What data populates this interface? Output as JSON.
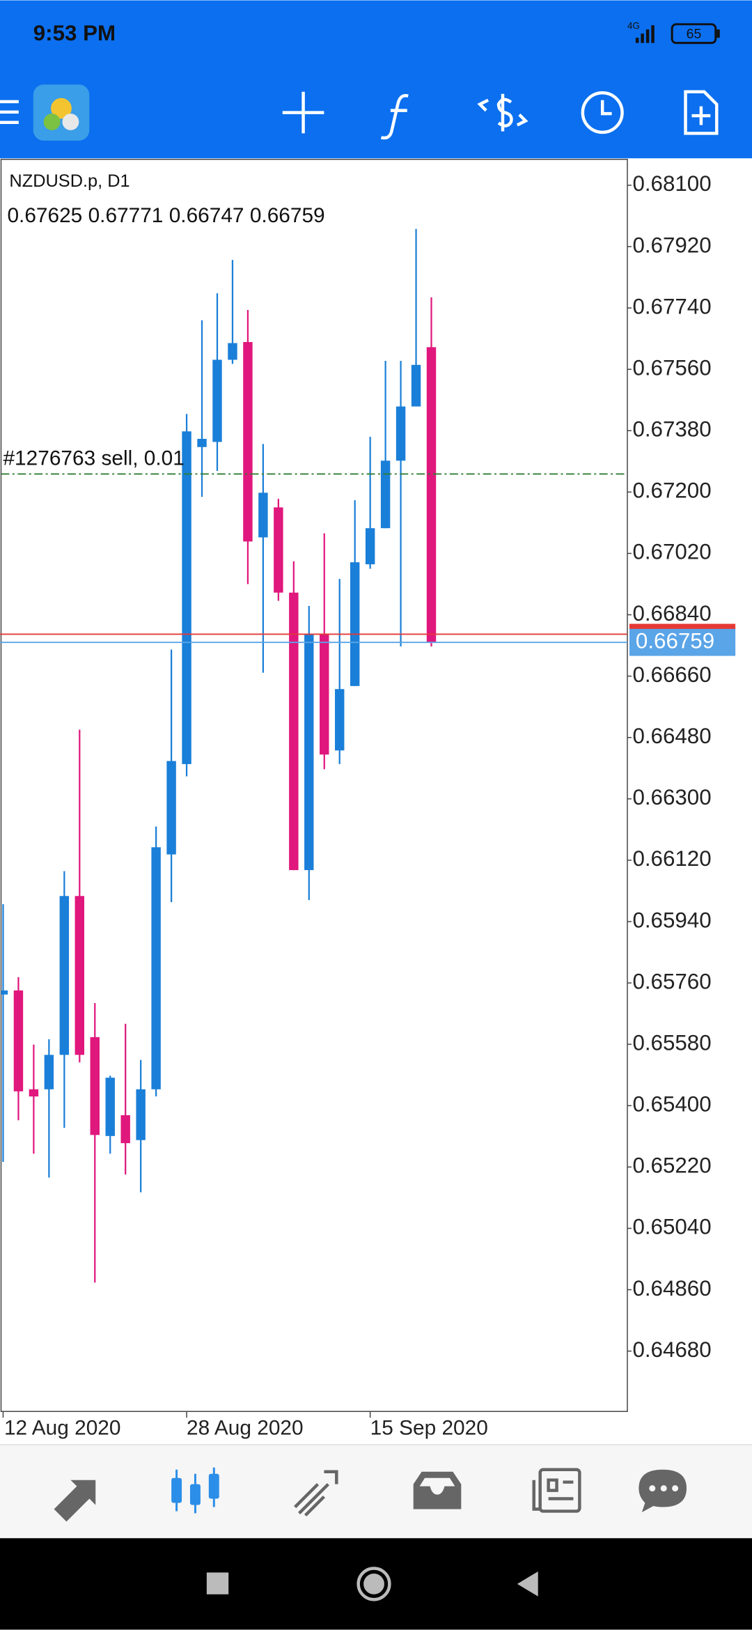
{
  "status_bar": {
    "time": "9:53 PM",
    "network": "4G",
    "battery": 65
  },
  "chart": {
    "type": "candlestick",
    "symbol": "NZDUSD.p, D1",
    "categories": [
      "12 Aug 2020",
      null,
      null,
      null,
      null,
      null,
      null,
      null,
      null,
      null,
      null,
      null,
      "28 Aug 2020",
      null,
      null,
      null,
      null,
      null,
      null,
      null,
      null,
      null,
      null,
      null,
      "15 Sep 2020",
      null,
      null,
      null,
      null
    ],
    "candles": [
      {
        "open": 0.65726,
        "high": 0.65991,
        "low": 0.65235,
        "close": 0.65738
      },
      {
        "open": 0.65738,
        "high": 0.65777,
        "low": 0.65357,
        "close": 0.65442
      },
      {
        "open": 0.65448,
        "high": 0.65579,
        "low": 0.65259,
        "close": 0.65427
      },
      {
        "open": 0.65448,
        "high": 0.65595,
        "low": 0.65189,
        "close": 0.65549
      },
      {
        "open": 0.65549,
        "high": 0.66088,
        "low": 0.65335,
        "close": 0.66015
      },
      {
        "open": 0.66015,
        "high": 0.66503,
        "low": 0.65527,
        "close": 0.65549
      },
      {
        "open": 0.65601,
        "high": 0.65701,
        "low": 0.64881,
        "close": 0.65314
      },
      {
        "open": 0.65311,
        "high": 0.65488,
        "low": 0.65259,
        "close": 0.65482
      },
      {
        "open": 0.65372,
        "high": 0.6564,
        "low": 0.65198,
        "close": 0.6529
      },
      {
        "open": 0.65299,
        "high": 0.65534,
        "low": 0.65146,
        "close": 0.65448
      },
      {
        "open": 0.65448,
        "high": 0.66219,
        "low": 0.65427,
        "close": 0.66158
      },
      {
        "open": 0.66137,
        "high": 0.66738,
        "low": 0.65997,
        "close": 0.66411
      },
      {
        "open": 0.66402,
        "high": 0.67429,
        "low": 0.66366,
        "close": 0.67378
      },
      {
        "open": 0.67332,
        "high": 0.67704,
        "low": 0.67186,
        "close": 0.67356
      },
      {
        "open": 0.67347,
        "high": 0.67783,
        "low": 0.67262,
        "close": 0.67588
      },
      {
        "open": 0.67588,
        "high": 0.67881,
        "low": 0.67576,
        "close": 0.67637
      },
      {
        "open": 0.6764,
        "high": 0.67734,
        "low": 0.6693,
        "close": 0.67055
      },
      {
        "open": 0.67067,
        "high": 0.67341,
        "low": 0.6667,
        "close": 0.67198
      },
      {
        "open": 0.67155,
        "high": 0.6718,
        "low": 0.66881,
        "close": 0.66905
      },
      {
        "open": 0.66905,
        "high": 0.66997,
        "low": 0.66091,
        "close": 0.66091
      },
      {
        "open": 0.66091,
        "high": 0.66866,
        "low": 0.66003,
        "close": 0.66783
      },
      {
        "open": 0.66783,
        "high": 0.67079,
        "low": 0.66387,
        "close": 0.6643
      },
      {
        "open": 0.66442,
        "high": 0.66945,
        "low": 0.66402,
        "close": 0.66622
      },
      {
        "open": 0.66631,
        "high": 0.67176,
        "low": 0.66631,
        "close": 0.66994
      },
      {
        "open": 0.66988,
        "high": 0.67362,
        "low": 0.66975,
        "close": 0.67094
      },
      {
        "open": 0.67094,
        "high": 0.67585,
        "low": 0.67094,
        "close": 0.67292
      },
      {
        "open": 0.67292,
        "high": 0.67585,
        "low": 0.66747,
        "close": 0.67451
      },
      {
        "open": 0.67451,
        "high": 0.67972,
        "low": 0.67451,
        "close": 0.67573
      },
      {
        "open": 0.67625,
        "high": 0.67771,
        "low": 0.66747,
        "close": 0.66759
      }
    ],
    "bull_color": "#1a7fd8",
    "bear_color": "#e0177c",
    "ylim": [
      0.64503,
      0.68176
    ],
    "yticks": [
      {
        "value": 0.681,
        "label": "0.68100"
      },
      {
        "value": 0.6792,
        "label": "0.67920"
      },
      {
        "value": 0.6774,
        "label": "0.67740"
      },
      {
        "value": 0.6756,
        "label": "0.67560"
      },
      {
        "value": 0.6738,
        "label": "0.67380"
      },
      {
        "value": 0.672,
        "label": "0.67200"
      },
      {
        "value": 0.6702,
        "label": "0.67020"
      },
      {
        "value": 0.6684,
        "label": "0.66840"
      },
      {
        "value": 0.6666,
        "label": "0.66660"
      },
      {
        "value": 0.6648,
        "label": "0.66480"
      },
      {
        "value": 0.663,
        "label": "0.66300"
      },
      {
        "value": 0.6612,
        "label": "0.66120"
      },
      {
        "value": 0.6594,
        "label": "0.65940"
      },
      {
        "value": 0.6576,
        "label": "0.65760"
      },
      {
        "value": 0.6558,
        "label": "0.65580"
      },
      {
        "value": 0.654,
        "label": "0.65400"
      },
      {
        "value": 0.6522,
        "label": "0.65220"
      },
      {
        "value": 0.6504,
        "label": "0.65040"
      },
      {
        "value": 0.6486,
        "label": "0.64860"
      },
      {
        "value": 0.6468,
        "label": "0.64680"
      }
    ],
    "order_line": {
      "label": "#1276763 sell, 0.01",
      "value": 0.67253,
      "color": "#2e7d32"
    },
    "ask_line": {
      "value": 0.66783,
      "color": "#e53935"
    },
    "bid_line": {
      "value": 0.66759,
      "color": "#5aa4e8"
    }
  }
}
